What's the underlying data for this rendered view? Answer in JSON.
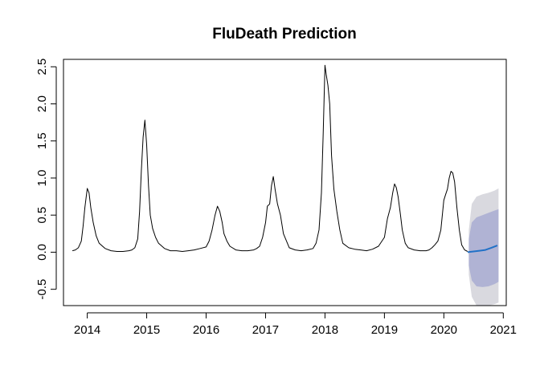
{
  "chart_data": {
    "type": "line",
    "title": "FluDeath Prediction",
    "xlabel": "",
    "ylabel": "",
    "xlim": [
      2013.6,
      2021.05
    ],
    "ylim": [
      -0.72,
      2.6
    ],
    "x_ticks": [
      2014,
      2015,
      2016,
      2017,
      2018,
      2019,
      2020,
      2021
    ],
    "x_tick_labels": [
      "2014",
      "2015",
      "2016",
      "2017",
      "2018",
      "2019",
      "2020",
      "2021"
    ],
    "y_ticks": [
      -0.5,
      0.0,
      0.5,
      1.0,
      1.5,
      2.0,
      2.5
    ],
    "y_tick_labels": [
      "-0.5",
      "0.0",
      "0.5",
      "1.0",
      "1.5",
      "2.0",
      "2.5"
    ],
    "grid": false,
    "series": [
      {
        "role": "observed",
        "color": "#000000",
        "x": [
          2013.75,
          2013.8,
          2013.85,
          2013.9,
          2013.93,
          2013.96,
          2014.0,
          2014.03,
          2014.06,
          2014.1,
          2014.15,
          2014.2,
          2014.3,
          2014.4,
          2014.5,
          2014.6,
          2014.7,
          2014.75,
          2014.8,
          2014.85,
          2014.88,
          2014.91,
          2014.94,
          2014.97,
          2015.0,
          2015.03,
          2015.06,
          2015.1,
          2015.15,
          2015.2,
          2015.3,
          2015.4,
          2015.5,
          2015.6,
          2015.7,
          2015.8,
          2015.9,
          2016.0,
          2016.05,
          2016.1,
          2016.15,
          2016.19,
          2016.23,
          2016.27,
          2016.3,
          2016.35,
          2016.4,
          2016.5,
          2016.6,
          2016.7,
          2016.8,
          2016.85,
          2016.9,
          2016.95,
          2017.0,
          2017.03,
          2017.07,
          2017.1,
          2017.13,
          2017.16,
          2017.2,
          2017.25,
          2017.3,
          2017.4,
          2017.5,
          2017.6,
          2017.7,
          2017.8,
          2017.85,
          2017.9,
          2017.94,
          2017.97,
          2018.0,
          2018.02,
          2018.05,
          2018.08,
          2018.11,
          2018.15,
          2018.2,
          2018.25,
          2018.3,
          2018.4,
          2018.5,
          2018.6,
          2018.7,
          2018.8,
          2018.9,
          2019.0,
          2019.05,
          2019.1,
          2019.14,
          2019.17,
          2019.2,
          2019.23,
          2019.27,
          2019.3,
          2019.35,
          2019.4,
          2019.5,
          2019.6,
          2019.7,
          2019.75,
          2019.8,
          2019.85,
          2019.9,
          2019.95,
          2020.0,
          2020.03,
          2020.06,
          2020.09,
          2020.12,
          2020.15,
          2020.18,
          2020.22,
          2020.26,
          2020.3,
          2020.35,
          2020.4
        ],
        "y": [
          0.02,
          0.03,
          0.06,
          0.15,
          0.35,
          0.6,
          0.86,
          0.8,
          0.6,
          0.4,
          0.22,
          0.12,
          0.05,
          0.02,
          0.01,
          0.01,
          0.02,
          0.03,
          0.06,
          0.18,
          0.55,
          1.1,
          1.55,
          1.78,
          1.45,
          0.9,
          0.5,
          0.32,
          0.2,
          0.12,
          0.05,
          0.02,
          0.02,
          0.01,
          0.02,
          0.03,
          0.05,
          0.07,
          0.15,
          0.3,
          0.5,
          0.62,
          0.55,
          0.4,
          0.25,
          0.15,
          0.08,
          0.03,
          0.02,
          0.02,
          0.03,
          0.05,
          0.08,
          0.2,
          0.4,
          0.62,
          0.65,
          0.9,
          1.02,
          0.85,
          0.65,
          0.5,
          0.25,
          0.06,
          0.03,
          0.02,
          0.03,
          0.05,
          0.12,
          0.3,
          0.8,
          1.6,
          2.52,
          2.4,
          2.25,
          2.0,
          1.3,
          0.85,
          0.55,
          0.3,
          0.12,
          0.06,
          0.04,
          0.03,
          0.02,
          0.04,
          0.08,
          0.2,
          0.45,
          0.6,
          0.8,
          0.92,
          0.87,
          0.75,
          0.5,
          0.3,
          0.12,
          0.06,
          0.03,
          0.02,
          0.02,
          0.03,
          0.06,
          0.1,
          0.15,
          0.3,
          0.7,
          0.78,
          0.85,
          1.0,
          1.09,
          1.07,
          0.95,
          0.6,
          0.3,
          0.1,
          0.03,
          0.01
        ]
      },
      {
        "role": "forecast",
        "color": "#2171c7",
        "x": [
          2020.4,
          2020.5,
          2020.6,
          2020.7,
          2020.8,
          2020.9
        ],
        "y": [
          0.0,
          0.01,
          0.02,
          0.03,
          0.06,
          0.09
        ]
      }
    ],
    "intervals": [
      {
        "level": "outer",
        "color": "#d9d9df",
        "x": [
          2020.42,
          2020.47,
          2020.55,
          2020.65,
          2020.75,
          2020.85,
          2020.92
        ],
        "upper": [
          0.3,
          0.65,
          0.75,
          0.78,
          0.8,
          0.83,
          0.86
        ],
        "lower": [
          -0.3,
          -0.6,
          -0.72,
          -0.72,
          -0.72,
          -0.7,
          -0.68
        ]
      },
      {
        "level": "inner",
        "color": "#b0b3d4",
        "x": [
          2020.42,
          2020.47,
          2020.55,
          2020.65,
          2020.75,
          2020.85,
          2020.92
        ],
        "upper": [
          0.18,
          0.4,
          0.47,
          0.5,
          0.53,
          0.56,
          0.58
        ],
        "lower": [
          -0.18,
          -0.38,
          -0.46,
          -0.47,
          -0.46,
          -0.43,
          -0.4
        ]
      }
    ]
  }
}
